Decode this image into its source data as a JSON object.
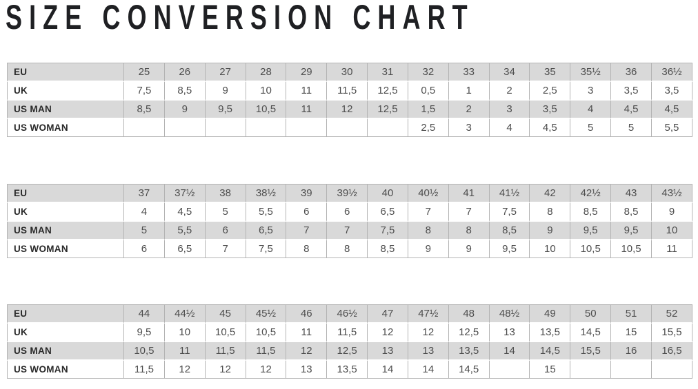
{
  "title": "SIZE CONVERSION CHART",
  "colors": {
    "stripe_row_background": "#d9d9d9",
    "plain_row_background": "#ffffff",
    "cell_border": "#b3b3b3",
    "value_text": "#4d4d4d",
    "label_text": "#2a2a2a",
    "title_text": "#1f2023"
  },
  "tables": [
    {
      "rows": [
        {
          "label": "EU",
          "values": [
            "25",
            "26",
            "27",
            "28",
            "29",
            "30",
            "31",
            "32",
            "33",
            "34",
            "35",
            "35½",
            "36",
            "36½"
          ]
        },
        {
          "label": "UK",
          "values": [
            "7,5",
            "8,5",
            "9",
            "10",
            "11",
            "11,5",
            "12,5",
            "0,5",
            "1",
            "2",
            "2,5",
            "3",
            "3,5",
            "3,5"
          ]
        },
        {
          "label": "US MAN",
          "values": [
            "8,5",
            "9",
            "9,5",
            "10,5",
            "11",
            "12",
            "12,5",
            "1,5",
            "2",
            "3",
            "3,5",
            "4",
            "4,5",
            "4,5"
          ]
        },
        {
          "label": "US WOMAN",
          "values": [
            "",
            "",
            "",
            "",
            "",
            "",
            "",
            "2,5",
            "3",
            "4",
            "4,5",
            "5",
            "5",
            "5,5"
          ]
        }
      ]
    },
    {
      "rows": [
        {
          "label": "EU",
          "values": [
            "37",
            "37½",
            "38",
            "38½",
            "39",
            "39½",
            "40",
            "40½",
            "41",
            "41½",
            "42",
            "42½",
            "43",
            "43½"
          ]
        },
        {
          "label": "UK",
          "values": [
            "4",
            "4,5",
            "5",
            "5,5",
            "6",
            "6",
            "6,5",
            "7",
            "7",
            "7,5",
            "8",
            "8,5",
            "8,5",
            "9"
          ]
        },
        {
          "label": "US MAN",
          "values": [
            "5",
            "5,5",
            "6",
            "6,5",
            "7",
            "7",
            "7,5",
            "8",
            "8",
            "8,5",
            "9",
            "9,5",
            "9,5",
            "10"
          ]
        },
        {
          "label": "US WOMAN",
          "values": [
            "6",
            "6,5",
            "7",
            "7,5",
            "8",
            "8",
            "8,5",
            "9",
            "9",
            "9,5",
            "10",
            "10,5",
            "10,5",
            "11"
          ]
        }
      ]
    },
    {
      "rows": [
        {
          "label": "EU",
          "values": [
            "44",
            "44½",
            "45",
            "45½",
            "46",
            "46½",
            "47",
            "47½",
            "48",
            "48½",
            "49",
            "50",
            "51",
            "52"
          ]
        },
        {
          "label": "UK",
          "values": [
            "9,5",
            "10",
            "10,5",
            "10,5",
            "11",
            "11,5",
            "12",
            "12",
            "12,5",
            "13",
            "13,5",
            "14,5",
            "15",
            "15,5"
          ]
        },
        {
          "label": "US MAN",
          "values": [
            "10,5",
            "11",
            "11,5",
            "11,5",
            "12",
            "12,5",
            "13",
            "13",
            "13,5",
            "14",
            "14,5",
            "15,5",
            "16",
            "16,5"
          ]
        },
        {
          "label": "US WOMAN",
          "values": [
            "11,5",
            "12",
            "12",
            "12",
            "13",
            "13,5",
            "14",
            "14",
            "14,5",
            "",
            "15",
            "",
            "",
            ""
          ]
        }
      ]
    }
  ]
}
